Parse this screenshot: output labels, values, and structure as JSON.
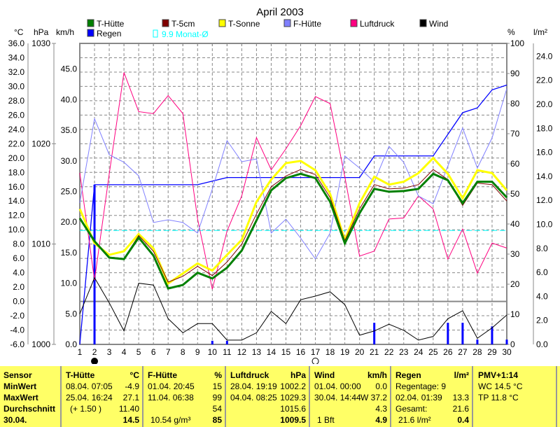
{
  "chart_data": {
    "type": "line",
    "title": "April 2003",
    "x": [
      1,
      2,
      3,
      4,
      5,
      6,
      7,
      8,
      9,
      10,
      11,
      12,
      13,
      14,
      15,
      16,
      17,
      18,
      19,
      20,
      21,
      22,
      23,
      24,
      25,
      26,
      27,
      28,
      29,
      30
    ],
    "axes": {
      "celsius": {
        "unit": "°C",
        "range": [
          -6,
          36
        ],
        "ticks": [
          36.0,
          34.0,
          32.0,
          30.0,
          28.0,
          26.0,
          24.0,
          22.0,
          20.0,
          18.0,
          16.0,
          14.0,
          12.0,
          10.0,
          8.0,
          6.0,
          4.0,
          2.0,
          0.0,
          -2.0,
          -4.0,
          -6.0
        ]
      },
      "hpa": {
        "unit": "hPa",
        "range": [
          1000,
          1030
        ],
        "ticks": [
          1030,
          1020,
          1010,
          1000
        ]
      },
      "kmh": {
        "unit": "km/h",
        "range": [
          0,
          49.2
        ],
        "ticks": [
          45.0,
          40.0,
          35.0,
          30.0,
          25.0,
          20.0,
          15.0,
          10.0,
          5.0,
          0.0
        ]
      },
      "percent": {
        "unit": "%",
        "range": [
          0,
          100
        ],
        "ticks": [
          100,
          90,
          80,
          70,
          60,
          50,
          40,
          30,
          20,
          10,
          0
        ]
      },
      "rain": {
        "unit": "l/m²",
        "range": [
          0,
          25.07
        ],
        "ticks": [
          24.0,
          22.0,
          20.0,
          18.0,
          16.0,
          14.0,
          12.0,
          10.0,
          8.0,
          6.0,
          4.0,
          2.0,
          0.0
        ]
      }
    },
    "grid": true,
    "legend_placement": "top",
    "series": [
      {
        "name": "T-Hütte",
        "axis": "celsius",
        "color": "#008000",
        "width": 3,
        "values": [
          11.6,
          8.4,
          6.1,
          5.9,
          8.9,
          6.4,
          1.8,
          2.3,
          4.0,
          3.2,
          4.7,
          7.1,
          11.3,
          15.5,
          17.2,
          17.8,
          17.2,
          13.9,
          8.1,
          12.3,
          15.7,
          15.3,
          15.4,
          15.7,
          17.8,
          16.9,
          13.7,
          16.7,
          16.7,
          14.5
        ]
      },
      {
        "name": "T-5cm",
        "axis": "celsius",
        "color": "#800000",
        "width": 1,
        "values": [
          11.6,
          8.4,
          6.2,
          6.0,
          9.2,
          7.0,
          2.7,
          3.5,
          4.9,
          3.6,
          5.5,
          8.0,
          12.2,
          16.0,
          17.5,
          18.4,
          17.7,
          14.5,
          8.5,
          12.9,
          16.3,
          15.7,
          15.8,
          16.3,
          18.4,
          17.0,
          13.4,
          16.5,
          16.3,
          14.0
        ]
      },
      {
        "name": "T-Sonne",
        "axis": "celsius",
        "color": "#ffff00",
        "width": 3,
        "values": [
          12.9,
          8.1,
          6.5,
          7.0,
          9.4,
          7.4,
          2.5,
          3.9,
          5.3,
          4.3,
          6.5,
          8.6,
          13.9,
          17.0,
          19.3,
          19.6,
          18.3,
          15.0,
          8.6,
          13.7,
          17.4,
          16.3,
          16.7,
          17.9,
          20.0,
          17.8,
          14.4,
          18.3,
          17.9,
          15.5
        ]
      },
      {
        "name": "F-Hütte",
        "axis": "percent",
        "color": "#8080ff",
        "width": 1,
        "values": [
          47,
          75,
          63,
          60.5,
          56,
          40.5,
          41.4,
          40.5,
          37,
          51.6,
          67.7,
          60.7,
          61.6,
          37,
          41.6,
          35.3,
          28.4,
          37,
          62.6,
          58.6,
          54,
          65.8,
          60.5,
          49.3,
          46.7,
          59.3,
          71.9,
          58.6,
          68.6,
          85
        ]
      },
      {
        "name": "Luftdruck",
        "axis": "hpa",
        "color": "#ff0080",
        "width": 1,
        "values": [
          1017.1,
          1006.4,
          1017.0,
          1027.1,
          1023.2,
          1023.0,
          1024.8,
          1023.0,
          1012.5,
          1005.5,
          1011.3,
          1014.8,
          1020.6,
          1017.4,
          1019.5,
          1021.8,
          1024.7,
          1024.0,
          1016.7,
          1008.8,
          1009.3,
          1012.5,
          1012.6,
          1014.8,
          1013.5,
          1008.5,
          1011.5,
          1007.1,
          1010.1,
          1009.6
        ]
      },
      {
        "name": "Wind",
        "axis": "kmh",
        "color": "#000000",
        "width": 1,
        "values": [
          5.0,
          10.9,
          6.8,
          2.2,
          10.0,
          9.7,
          4.2,
          1.9,
          3.4,
          3.4,
          0.7,
          0.7,
          1.9,
          5.4,
          3.4,
          7.3,
          7.9,
          8.6,
          6.5,
          1.5,
          2.2,
          3.3,
          2.3,
          0.7,
          1.3,
          4.2,
          5.5,
          1.0,
          2.7,
          4.8
        ]
      },
      {
        "name": "Regen",
        "axis": "rain",
        "color": "#0000ff",
        "width": 1,
        "type": "bar+cumulative",
        "values": [
          0,
          13.3,
          0,
          0,
          0,
          0,
          0,
          0,
          0,
          0.3,
          0.3,
          0,
          0,
          0,
          0,
          0,
          0,
          0,
          0,
          0,
          1.8,
          0,
          0,
          0,
          0,
          1.8,
          1.8,
          0.4,
          1.5,
          0.4
        ]
      }
    ],
    "monthly_mean": {
      "label": "9.9 Monat-Ø",
      "value": 9.9,
      "axis": "celsius",
      "color": "#00ffff"
    },
    "moon_phases": [
      {
        "day": 2,
        "phase": "new"
      },
      {
        "day": 17,
        "phase": "full"
      }
    ]
  },
  "table": {
    "sensor": {
      "title": "Sensor",
      "rows": [
        "MinWert",
        "MaxWert",
        "Durchschnitt",
        "30.04."
      ]
    },
    "t_huette": {
      "title": "T-Hütte",
      "unit": "°C",
      "min_time": "08.04.  07:05",
      "min": "-4.9",
      "max_time": "25.04.  16:24",
      "max": "27.1",
      "avg_note": "(+ 1.50 )",
      "avg": "11.40",
      "current": "14.5"
    },
    "f_huette": {
      "title": "F-Hütte",
      "unit": "%",
      "min_time": "01.04.  20:45",
      "min": "15",
      "max_time": "11.04.  06:38",
      "max": "99",
      "avg": "54",
      "abs": "10.54 g/m³",
      "current": "85"
    },
    "luftdruck": {
      "title": "Luftdruck",
      "unit": "hPa",
      "min_time": "28.04.  19:19",
      "min": "1002.2",
      "max_time": "04.04.  08:25",
      "max": "1029.3",
      "avg": "1015.6",
      "current": "1009.5"
    },
    "wind": {
      "title": "Wind",
      "unit": "km/h",
      "min_time": "01.04.  00:00",
      "min": "0.0",
      "max_time": "30.04.  14:44",
      "max": "W 37.2",
      "avg": "4.3",
      "bft": "1 Bft",
      "current": "4.9"
    },
    "regen": {
      "title": "Regen",
      "unit": "l/m²",
      "days": "Regentage: 9",
      "max_time": "02.04.  01:39",
      "max": "13.3",
      "total_label": "Gesamt:",
      "total": "21.6",
      "total2": "21.6 l/m²",
      "current": "0.4"
    },
    "pmv": {
      "title": "PMV+1:14",
      "wc": "WC 14.5 °C",
      "tp": "TP 11.8 °C"
    }
  }
}
